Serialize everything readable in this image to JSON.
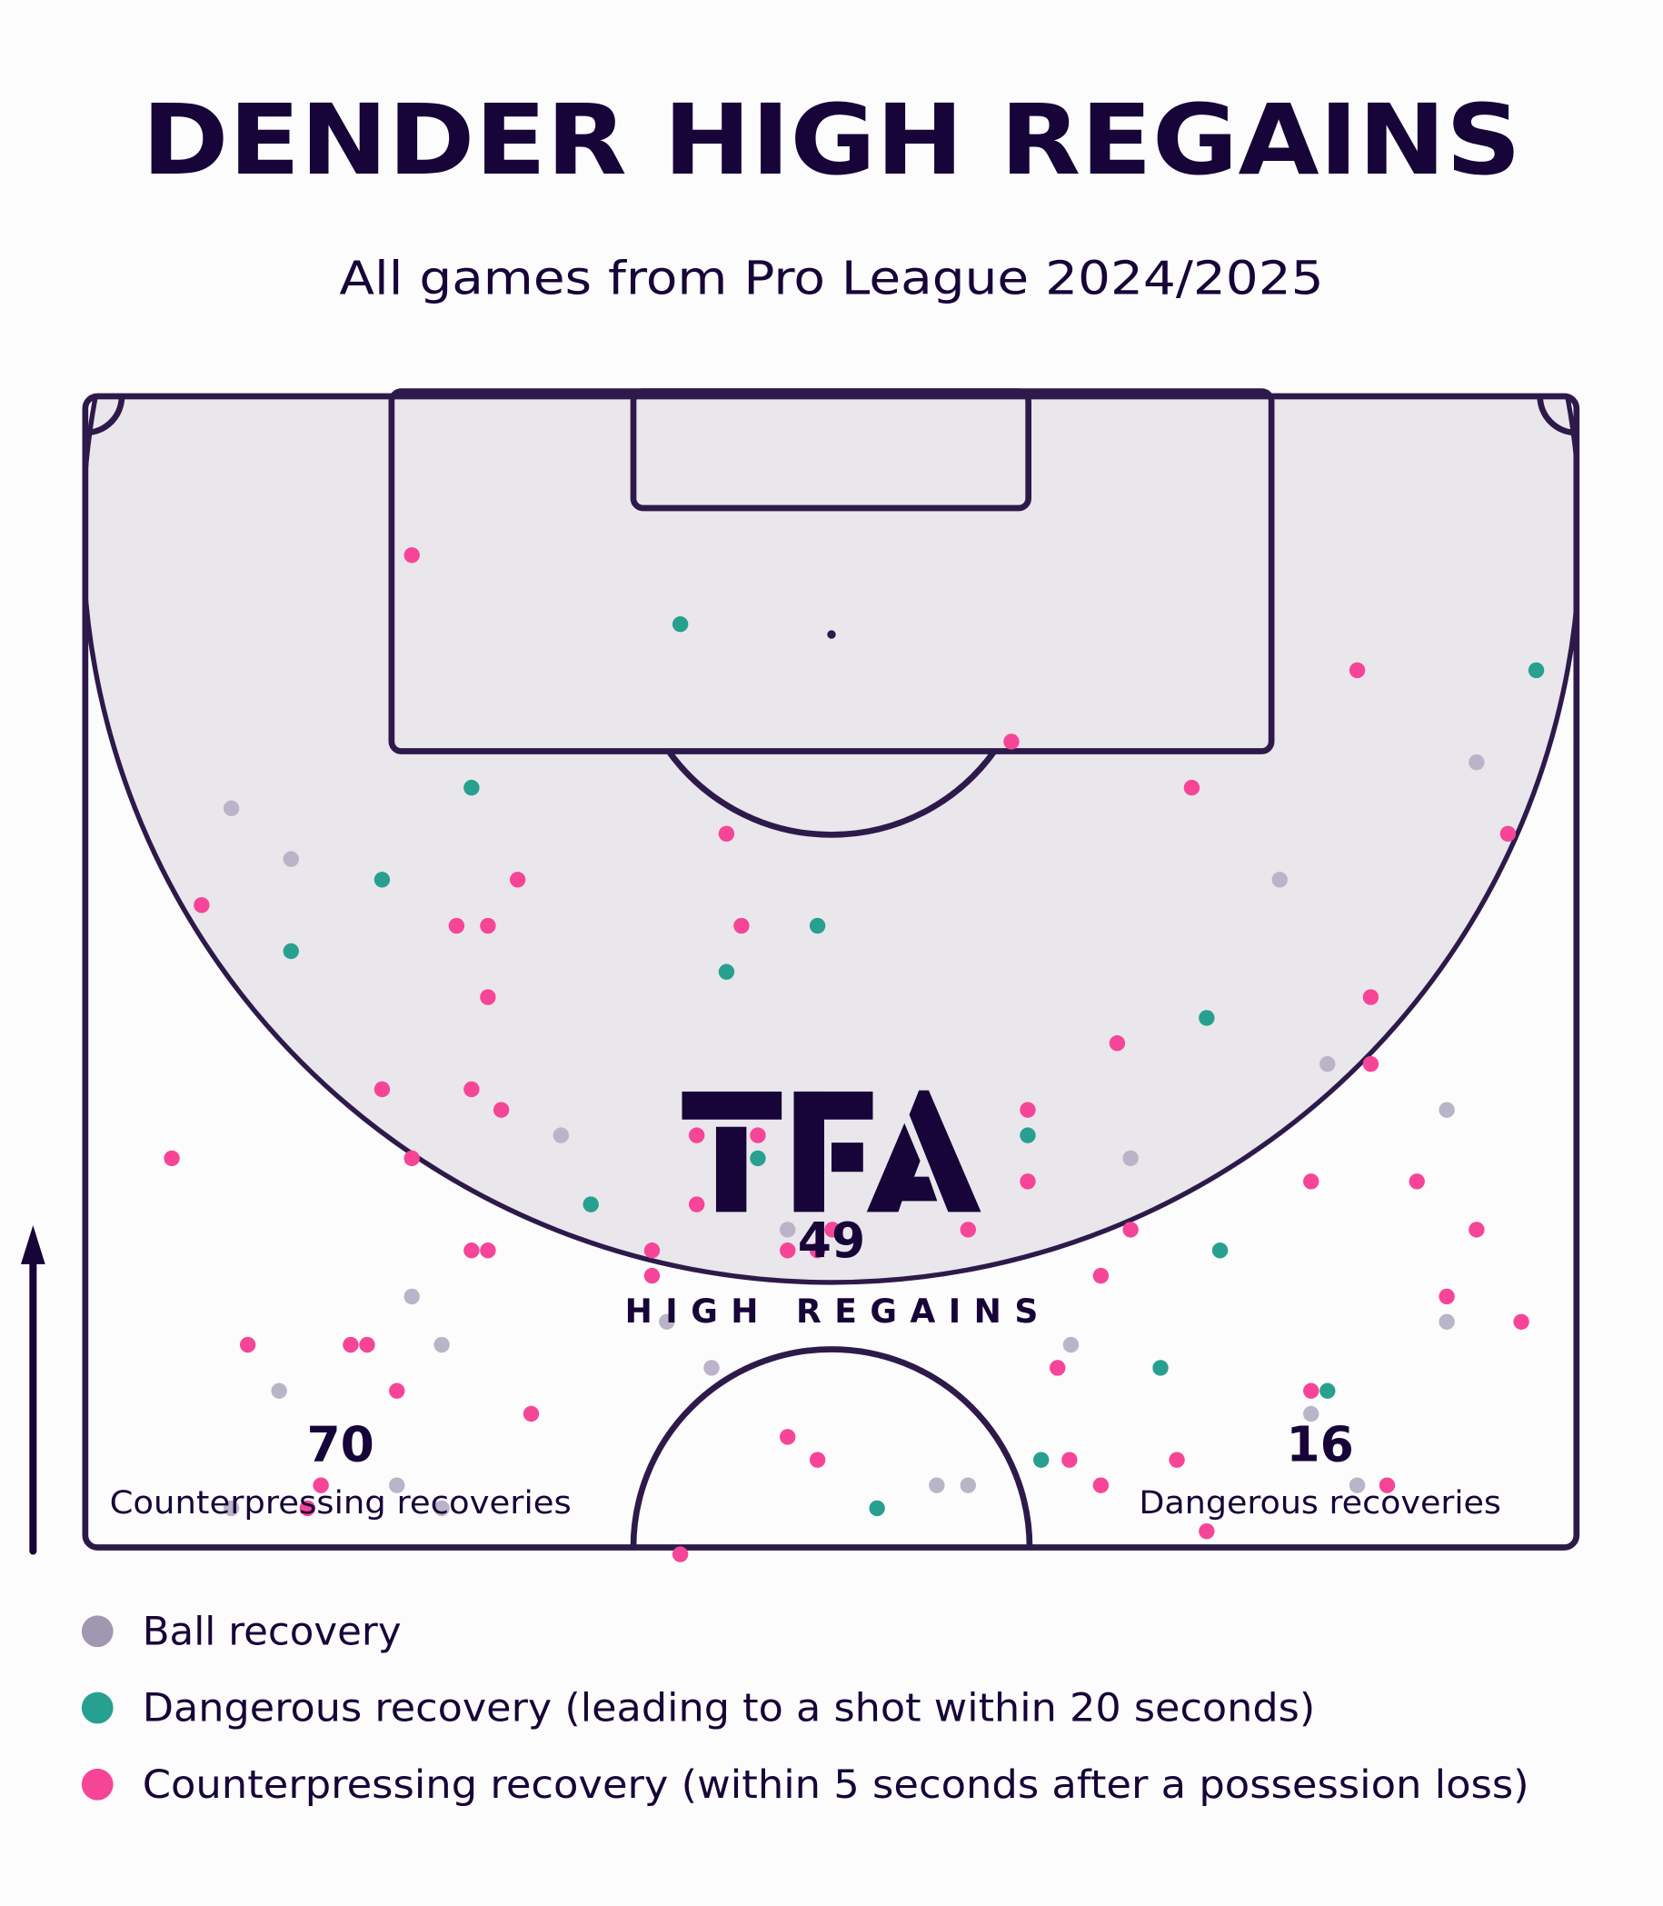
{
  "title": "DENDER HIGH REGAINS",
  "subtitle": "All games from Pro League 2024/2025",
  "logo_text": "TFA",
  "stats": {
    "high_regains_value": "49",
    "high_regains_label": "HIGH REGAINS",
    "counterpressing_value": "70",
    "counterpressing_label": "Counterpressing recoveries",
    "dangerous_value": "16",
    "dangerous_label": "Dangerous recoveries"
  },
  "legend": [
    {
      "label": "Ball recovery",
      "color": "#b9b4c8"
    },
    {
      "label": "Dangerous recovery (leading to a shot within 20 seconds)",
      "color": "#27a08f"
    },
    {
      "label": "Counterpressing recovery (within 5 seconds after a possession loss)",
      "color": "#f64597"
    }
  ],
  "colors": {
    "text": "#170438",
    "pitch_line": "#2d1a4a",
    "high_zone": "#e9e6ec",
    "background": "#fcfcfc"
  },
  "chart_data": {
    "type": "scatter",
    "description_of_units": "pitch % (x across width 0-100, y along length 50-100 toward opponent goal)",
    "attack_direction": "up",
    "series": [
      {
        "name": "Ball recovery",
        "color": "#b9b4c8",
        "points": [
          [
            9.8,
            82.1
          ],
          [
            13.8,
            79.9
          ],
          [
            93.3,
            84.1
          ],
          [
            80.1,
            79.0
          ],
          [
            83.3,
            71.0
          ],
          [
            91.3,
            69.0
          ],
          [
            31.9,
            67.9
          ],
          [
            70.1,
            66.9
          ],
          [
            47.1,
            63.8
          ],
          [
            21.9,
            60.9
          ],
          [
            39.0,
            59.8
          ],
          [
            91.3,
            59.8
          ],
          [
            23.9,
            58.8
          ],
          [
            66.1,
            58.8
          ],
          [
            13.0,
            56.8
          ],
          [
            42.0,
            57.8
          ],
          [
            82.2,
            55.8
          ],
          [
            20.9,
            52.7
          ],
          [
            57.1,
            52.7
          ],
          [
            59.2,
            52.7
          ],
          [
            85.3,
            52.7
          ],
          [
            9.8,
            51.7
          ],
          [
            23.9,
            51.7
          ]
        ]
      },
      {
        "name": "Dangerous recovery (leading to a shot within 20 seconds)",
        "color": "#27a08f",
        "points": [
          [
            39.9,
            90.1
          ],
          [
            97.3,
            88.1
          ],
          [
            25.9,
            83.0
          ],
          [
            19.9,
            79.0
          ],
          [
            13.8,
            75.9
          ],
          [
            49.1,
            77.0
          ],
          [
            43.0,
            75.0
          ],
          [
            75.2,
            73.0
          ],
          [
            63.2,
            67.9
          ],
          [
            45.1,
            66.9
          ],
          [
            33.9,
            64.9
          ],
          [
            76.1,
            62.9
          ],
          [
            72.1,
            57.8
          ],
          [
            83.3,
            56.8
          ],
          [
            64.1,
            53.8
          ],
          [
            53.1,
            51.7
          ]
        ]
      },
      {
        "name": "Counterpressing recovery (within 5 seconds after a possession loss)",
        "color": "#f64597",
        "points": [
          [
            21.9,
            93.1
          ],
          [
            85.3,
            88.1
          ],
          [
            62.1,
            85.0
          ],
          [
            74.2,
            83.0
          ],
          [
            43.0,
            81.0
          ],
          [
            95.4,
            81.0
          ],
          [
            7.8,
            77.9
          ],
          [
            29.0,
            79.0
          ],
          [
            24.9,
            77.0
          ],
          [
            27.0,
            77.0
          ],
          [
            44.0,
            77.0
          ],
          [
            27.0,
            73.9
          ],
          [
            86.2,
            73.9
          ],
          [
            69.2,
            71.9
          ],
          [
            86.2,
            71.0
          ],
          [
            19.9,
            69.9
          ],
          [
            25.9,
            69.9
          ],
          [
            27.9,
            69.0
          ],
          [
            63.2,
            69.0
          ],
          [
            5.8,
            66.9
          ],
          [
            21.9,
            66.9
          ],
          [
            41.0,
            67.9
          ],
          [
            45.1,
            67.9
          ],
          [
            63.2,
            65.9
          ],
          [
            82.2,
            65.9
          ],
          [
            89.3,
            65.9
          ],
          [
            41.0,
            64.9
          ],
          [
            59.2,
            63.8
          ],
          [
            70.1,
            63.8
          ],
          [
            93.3,
            63.8
          ],
          [
            25.9,
            62.9
          ],
          [
            27.0,
            62.9
          ],
          [
            38.0,
            62.9
          ],
          [
            47.1,
            62.9
          ],
          [
            49.1,
            62.9
          ],
          [
            50.1,
            63.8
          ],
          [
            38.0,
            61.8
          ],
          [
            68.1,
            61.8
          ],
          [
            91.3,
            60.9
          ],
          [
            96.3,
            59.8
          ],
          [
            10.9,
            58.8
          ],
          [
            17.8,
            58.8
          ],
          [
            18.9,
            58.8
          ],
          [
            20.9,
            56.8
          ],
          [
            29.9,
            55.8
          ],
          [
            65.2,
            57.8
          ],
          [
            82.2,
            56.8
          ],
          [
            47.1,
            54.8
          ],
          [
            49.1,
            53.8
          ],
          [
            66.0,
            53.8
          ],
          [
            73.2,
            53.8
          ],
          [
            15.8,
            52.7
          ],
          [
            14.9,
            51.7
          ],
          [
            68.1,
            52.7
          ],
          [
            87.3,
            52.7
          ],
          [
            75.2,
            50.7
          ],
          [
            39.9,
            49.7
          ]
        ]
      }
    ]
  }
}
